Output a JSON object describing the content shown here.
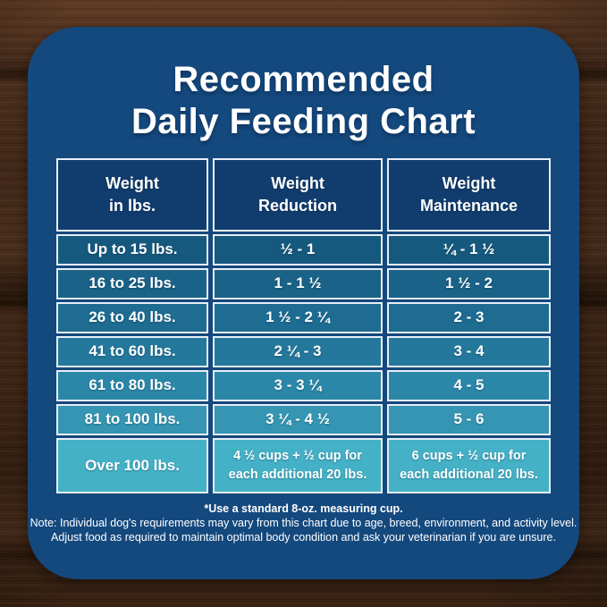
{
  "title": {
    "line1": "Recommended",
    "line2": "Daily Feeding Chart"
  },
  "table": {
    "headers": [
      "Weight\nin lbs.",
      "Weight\nReduction",
      "Weight\nMaintenance"
    ],
    "rows": [
      {
        "weight": "Up to 15 lbs.",
        "reduction": "½ - 1",
        "maintenance": "¼ - 1 ½"
      },
      {
        "weight": "16 to 25 lbs.",
        "reduction": "1 - 1 ½",
        "maintenance": "1 ½ - 2"
      },
      {
        "weight": "26 to 40 lbs.",
        "reduction": "1 ½ - 2 ¼",
        "maintenance": "2 - 3"
      },
      {
        "weight": "41 to 60 lbs.",
        "reduction": "2 ¼ - 3",
        "maintenance": "3 - 4"
      },
      {
        "weight": "61 to 80 lbs.",
        "reduction": "3 - 3 ¼",
        "maintenance": "4 - 5"
      },
      {
        "weight": "81 to 100 lbs.",
        "reduction": "3 ¼ - 4 ½",
        "maintenance": "5 - 6"
      },
      {
        "weight": "Over 100 lbs.",
        "reduction": "4 ½ cups  + ½ cup for\neach additional 20 lbs.",
        "maintenance": "6 cups  + ½ cup for\neach additional 20 lbs."
      }
    ]
  },
  "footnotes": {
    "measuring_cup": "*Use a standard 8-oz. measuring cup.",
    "note_line1": "Note: Individual dog's requirements may vary from this chart due to age, breed, environment, and activity level.",
    "note_line2": "Adjust food as required to maintain optimal body condition and ask your veterinarian if you are unsure."
  },
  "colors": {
    "panel_bg": "#14497e",
    "header_cell_bg": "#113d6e",
    "row_colors": [
      "#16597e",
      "#1a6288",
      "#1e6c91",
      "#24789c",
      "#2b87a8",
      "#3595b3",
      "#44b1c6"
    ],
    "cell_border": "#e8eef4",
    "text": "#ffffff"
  },
  "chart_data": {
    "type": "table",
    "title": "Recommended Daily Feeding Chart",
    "columns": [
      "Weight in lbs.",
      "Weight Reduction",
      "Weight Maintenance"
    ],
    "rows": [
      [
        "Up to 15 lbs.",
        "½ - 1",
        "¼ - 1 ½"
      ],
      [
        "16 to 25 lbs.",
        "1 - 1 ½",
        "1 ½ - 2"
      ],
      [
        "26 to 40 lbs.",
        "1 ½ - 2 ¼",
        "2 - 3"
      ],
      [
        "41 to 60 lbs.",
        "2 ¼ - 3",
        "3 - 4"
      ],
      [
        "61 to 80 lbs.",
        "3 - 3 ¼",
        "4 - 5"
      ],
      [
        "81 to 100 lbs.",
        "3 ¼ - 4 ½",
        "5 - 6"
      ],
      [
        "Over 100 lbs.",
        "4 ½ cups + ½ cup for each additional 20 lbs.",
        "6 cups + ½ cup for each additional 20 lbs."
      ]
    ],
    "footnote": "*Use a standard 8-oz. measuring cup."
  }
}
